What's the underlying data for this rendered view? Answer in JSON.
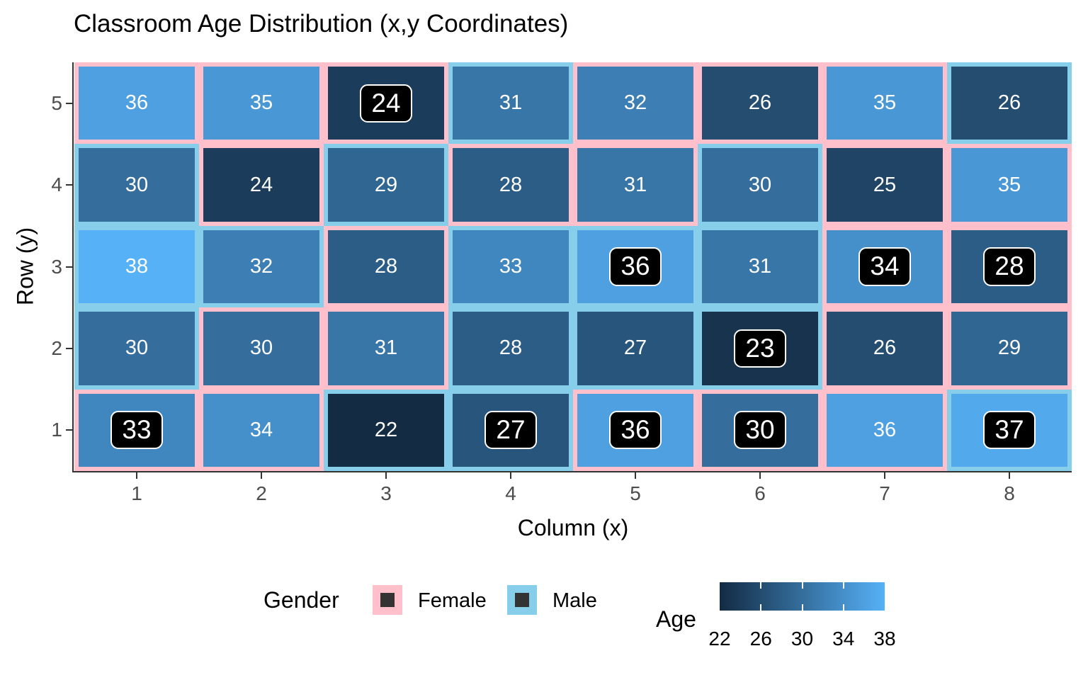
{
  "title": "Classroom Age Distribution (x,y Coordinates)",
  "x_axis": {
    "label": "Column (x)",
    "ticks": [
      "1",
      "2",
      "3",
      "4",
      "5",
      "6",
      "7",
      "8"
    ]
  },
  "y_axis": {
    "label": "Row (y)",
    "ticks": [
      "5",
      "4",
      "3",
      "2",
      "1"
    ]
  },
  "legend": {
    "gender": {
      "title": "Gender",
      "key_inner_color": "#333333",
      "entries": [
        {
          "label": "Female",
          "color": "#FFC0CB"
        },
        {
          "label": "Male",
          "color": "#87CEEB"
        }
      ]
    },
    "age": {
      "title": "Age",
      "ticks": [
        22,
        26,
        30,
        34,
        38
      ],
      "min": 22,
      "max": 38,
      "low_color": "#132B43",
      "high_color": "#56B1F7"
    }
  },
  "chart_data": {
    "type": "heatmap",
    "title": "Classroom Age Distribution (x,y Coordinates)",
    "xlabel": "Column (x)",
    "ylabel": "Row (y)",
    "x_range": [
      1,
      8
    ],
    "y_range": [
      1,
      5
    ],
    "grid": "off",
    "fill_scale": {
      "variable": "Age",
      "min": 22,
      "max": 38,
      "low": "#132B43",
      "high": "#56B1F7"
    },
    "border_colors": {
      "Female": "#FFC0CB",
      "Male": "#87CEEB"
    },
    "cell_text_color": "#ffffff",
    "boxed_label_style": {
      "fill": "#000000",
      "text": "#ffffff",
      "outline": "#ffffff"
    },
    "cells": [
      {
        "x": 1,
        "y": 5,
        "age": 36,
        "gender": "Female",
        "boxed": false
      },
      {
        "x": 2,
        "y": 5,
        "age": 35,
        "gender": "Female",
        "boxed": false
      },
      {
        "x": 3,
        "y": 5,
        "age": 24,
        "gender": "Female",
        "boxed": true
      },
      {
        "x": 4,
        "y": 5,
        "age": 31,
        "gender": "Male",
        "boxed": false
      },
      {
        "x": 5,
        "y": 5,
        "age": 32,
        "gender": "Female",
        "boxed": false
      },
      {
        "x": 6,
        "y": 5,
        "age": 26,
        "gender": "Female",
        "boxed": false
      },
      {
        "x": 7,
        "y": 5,
        "age": 35,
        "gender": "Female",
        "boxed": false
      },
      {
        "x": 8,
        "y": 5,
        "age": 26,
        "gender": "Male",
        "boxed": false
      },
      {
        "x": 1,
        "y": 4,
        "age": 30,
        "gender": "Male",
        "boxed": false
      },
      {
        "x": 2,
        "y": 4,
        "age": 24,
        "gender": "Female",
        "boxed": false
      },
      {
        "x": 3,
        "y": 4,
        "age": 29,
        "gender": "Male",
        "boxed": false
      },
      {
        "x": 4,
        "y": 4,
        "age": 28,
        "gender": "Female",
        "boxed": false
      },
      {
        "x": 5,
        "y": 4,
        "age": 31,
        "gender": "Female",
        "boxed": false
      },
      {
        "x": 6,
        "y": 4,
        "age": 30,
        "gender": "Male",
        "boxed": false
      },
      {
        "x": 7,
        "y": 4,
        "age": 25,
        "gender": "Female",
        "boxed": false
      },
      {
        "x": 8,
        "y": 4,
        "age": 35,
        "gender": "Female",
        "boxed": false
      },
      {
        "x": 1,
        "y": 3,
        "age": 38,
        "gender": "Male",
        "boxed": false
      },
      {
        "x": 2,
        "y": 3,
        "age": 32,
        "gender": "Male",
        "boxed": false
      },
      {
        "x": 3,
        "y": 3,
        "age": 28,
        "gender": "Female",
        "boxed": false
      },
      {
        "x": 4,
        "y": 3,
        "age": 33,
        "gender": "Male",
        "boxed": false
      },
      {
        "x": 5,
        "y": 3,
        "age": 36,
        "gender": "Male",
        "boxed": true
      },
      {
        "x": 6,
        "y": 3,
        "age": 31,
        "gender": "Male",
        "boxed": false
      },
      {
        "x": 7,
        "y": 3,
        "age": 34,
        "gender": "Female",
        "boxed": true
      },
      {
        "x": 8,
        "y": 3,
        "age": 28,
        "gender": "Female",
        "boxed": true
      },
      {
        "x": 1,
        "y": 2,
        "age": 30,
        "gender": "Male",
        "boxed": false
      },
      {
        "x": 2,
        "y": 2,
        "age": 30,
        "gender": "Female",
        "boxed": false
      },
      {
        "x": 3,
        "y": 2,
        "age": 31,
        "gender": "Female",
        "boxed": false
      },
      {
        "x": 4,
        "y": 2,
        "age": 28,
        "gender": "Male",
        "boxed": false
      },
      {
        "x": 5,
        "y": 2,
        "age": 27,
        "gender": "Male",
        "boxed": false
      },
      {
        "x": 6,
        "y": 2,
        "age": 23,
        "gender": "Male",
        "boxed": true
      },
      {
        "x": 7,
        "y": 2,
        "age": 26,
        "gender": "Female",
        "boxed": false
      },
      {
        "x": 8,
        "y": 2,
        "age": 29,
        "gender": "Female",
        "boxed": false
      },
      {
        "x": 1,
        "y": 1,
        "age": 33,
        "gender": "Female",
        "boxed": true
      },
      {
        "x": 2,
        "y": 1,
        "age": 34,
        "gender": "Female",
        "boxed": false
      },
      {
        "x": 3,
        "y": 1,
        "age": 22,
        "gender": "Male",
        "boxed": false
      },
      {
        "x": 4,
        "y": 1,
        "age": 27,
        "gender": "Male",
        "boxed": true
      },
      {
        "x": 5,
        "y": 1,
        "age": 36,
        "gender": "Female",
        "boxed": true
      },
      {
        "x": 6,
        "y": 1,
        "age": 30,
        "gender": "Female",
        "boxed": true
      },
      {
        "x": 7,
        "y": 1,
        "age": 36,
        "gender": "Female",
        "boxed": false
      },
      {
        "x": 8,
        "y": 1,
        "age": 37,
        "gender": "Male",
        "boxed": true
      }
    ]
  }
}
